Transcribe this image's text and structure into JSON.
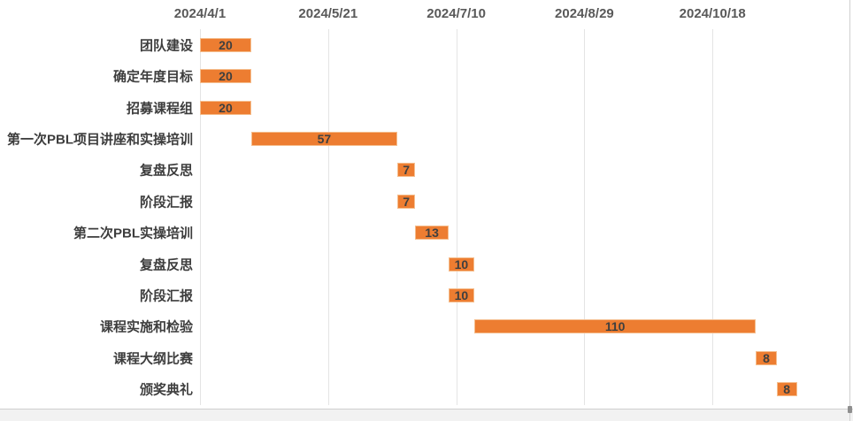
{
  "chart_data": {
    "type": "bar",
    "subtype": "gantt",
    "title": "",
    "axis": {
      "tick_labels": [
        "2024/4/1",
        "2024/5/21",
        "2024/7/10",
        "2024/8/29",
        "2024/10/18"
      ],
      "tick_days": [
        0,
        50,
        100,
        150,
        200
      ],
      "axis_max_days": 250,
      "tick_interval_days": 50,
      "grid": "vertical-on",
      "legend": "none"
    },
    "tasks": [
      {
        "label": "团队建设",
        "start": 0,
        "duration": 20
      },
      {
        "label": "确定年度目标",
        "start": 0,
        "duration": 20
      },
      {
        "label": "招募课程组",
        "start": 0,
        "duration": 20
      },
      {
        "label": "第一次PBL项目讲座和实操培训",
        "start": 20,
        "duration": 57
      },
      {
        "label": "复盘反思",
        "start": 77,
        "duration": 7
      },
      {
        "label": "阶段汇报",
        "start": 77,
        "duration": 7
      },
      {
        "label": "第二次PBL实操培训",
        "start": 84,
        "duration": 13
      },
      {
        "label": "复盘反思",
        "start": 97,
        "duration": 10
      },
      {
        "label": "阶段汇报",
        "start": 97,
        "duration": 10
      },
      {
        "label": "课程实施和检验",
        "start": 107,
        "duration": 110
      },
      {
        "label": "课程大纲比赛",
        "start": 217,
        "duration": 8
      },
      {
        "label": "颁奖典礼",
        "start": 225,
        "duration": 8
      }
    ],
    "colors": {
      "bar_fill": "#ED7D31",
      "bar_edge": "#F5BE8E",
      "bar_value_text": "#3F3F3F",
      "grid_line": "#E4E4E4",
      "axis_tick_text": "#595959",
      "task_label_text": "#3D3D3D",
      "background": "#FFFFFF",
      "window_border": "#CFCFCF",
      "bottom_strip_fill": "#F2F2F2"
    }
  }
}
